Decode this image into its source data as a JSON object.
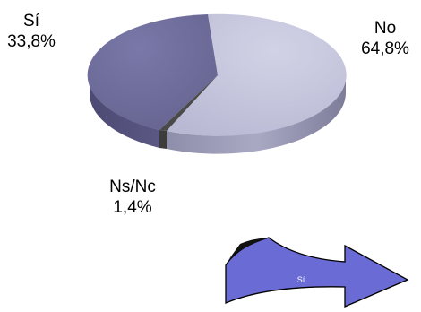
{
  "chart_data": {
    "type": "pie",
    "slices": [
      {
        "label": "Sí",
        "value_text": "33,8%",
        "value": 33.8,
        "color": "#6e6c9e"
      },
      {
        "label": "No",
        "value_text": "64,8%",
        "value": 64.8,
        "color": "#c4c4dc"
      },
      {
        "label": "Ns/Nc",
        "value_text": "1,4%",
        "value": 1.4,
        "color": "#4a4a4a"
      }
    ]
  },
  "arrow": {
    "label": "Sí",
    "color": "#6b6bd6"
  }
}
